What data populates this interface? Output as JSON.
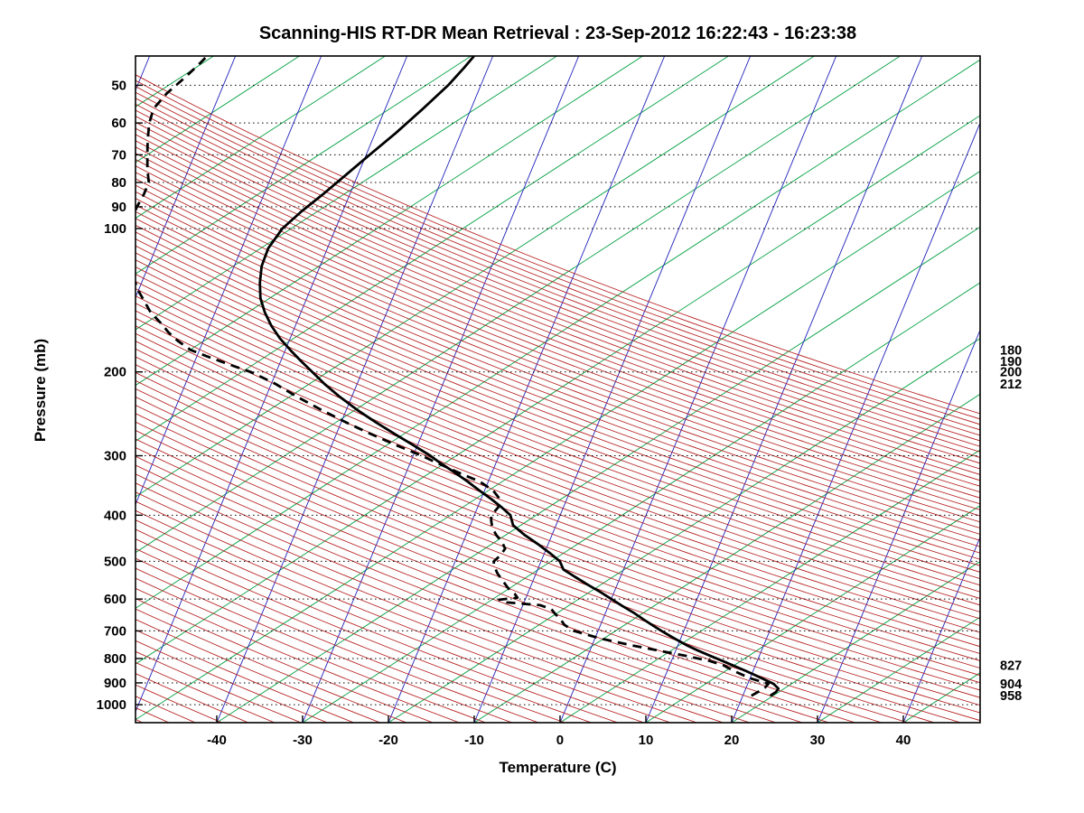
{
  "chart_data": {
    "type": "line",
    "variant": "skew-t-log-p-sounding",
    "title": "Scanning-HIS RT-DR Mean Retrieval : 23-Sep-2012 16:22:43 - 16:23:38",
    "xlabel": "Temperature (C)",
    "ylabel": "Pressure (mb)",
    "x_ticks": [
      -40,
      -30,
      -20,
      -10,
      0,
      10,
      20,
      30,
      40
    ],
    "y_ticks": [
      50,
      60,
      70,
      80,
      90,
      100,
      200,
      300,
      400,
      500,
      600,
      700,
      800,
      900,
      1000
    ],
    "xlim_surface": [
      -49.47,
      48.95
    ],
    "plim": [
      43.4,
      1091
    ],
    "skew_deg": 45,
    "grid": "dotted-horizontal-pressure-lines",
    "legend_position": "none",
    "right_pressure_labels": [
      180,
      190,
      200,
      212,
      827,
      904,
      958
    ],
    "series": [
      {
        "name": "temperature",
        "line": "solid",
        "color": "#000000",
        "points": [
          [
            958,
            23.2
          ],
          [
            940,
            23.7
          ],
          [
            925,
            23.8
          ],
          [
            904,
            23.0
          ],
          [
            885,
            21.7
          ],
          [
            865,
            20.3
          ],
          [
            850,
            19.2
          ],
          [
            827,
            17.4
          ],
          [
            810,
            16.0
          ],
          [
            790,
            14.3
          ],
          [
            770,
            12.6
          ],
          [
            750,
            11.0
          ],
          [
            725,
            9.2
          ],
          [
            700,
            7.4
          ],
          [
            680,
            6.0
          ],
          [
            660,
            4.6
          ],
          [
            640,
            3.2
          ],
          [
            620,
            1.6
          ],
          [
            600,
            0.0
          ],
          [
            580,
            -1.6
          ],
          [
            560,
            -3.4
          ],
          [
            540,
            -5.2
          ],
          [
            520,
            -7.0
          ],
          [
            500,
            -7.8
          ],
          [
            480,
            -9.4
          ],
          [
            460,
            -11.2
          ],
          [
            440,
            -13.2
          ],
          [
            420,
            -15.0
          ],
          [
            400,
            -15.8
          ],
          [
            385,
            -17.2
          ],
          [
            370,
            -18.8
          ],
          [
            355,
            -20.6
          ],
          [
            340,
            -22.4
          ],
          [
            325,
            -24.4
          ],
          [
            310,
            -26.6
          ],
          [
            300,
            -28.0
          ],
          [
            285,
            -30.5
          ],
          [
            270,
            -33.2
          ],
          [
            255,
            -36.0
          ],
          [
            240,
            -38.8
          ],
          [
            225,
            -41.5
          ],
          [
            212,
            -43.8
          ],
          [
            200,
            -45.8
          ],
          [
            190,
            -47.6
          ],
          [
            180,
            -49.4
          ],
          [
            170,
            -51.2
          ],
          [
            160,
            -52.8
          ],
          [
            150,
            -54.2
          ],
          [
            140,
            -55.4
          ],
          [
            130,
            -56.2
          ],
          [
            120,
            -56.8
          ],
          [
            110,
            -56.9
          ],
          [
            100,
            -56.2
          ],
          [
            92,
            -54.8
          ],
          [
            85,
            -53.2
          ],
          [
            78,
            -51.6
          ],
          [
            70,
            -49.6
          ],
          [
            63,
            -47.6
          ],
          [
            56,
            -45.6
          ],
          [
            50,
            -43.8
          ],
          [
            46,
            -42.8
          ],
          [
            43.4,
            -42.2
          ]
        ]
      },
      {
        "name": "dew_point",
        "line": "dashed",
        "color": "#000000",
        "points": [
          [
            958,
            21.0
          ],
          [
            940,
            21.6
          ],
          [
            920,
            22.2
          ],
          [
            904,
            22.4
          ],
          [
            880,
            20.0
          ],
          [
            850,
            17.8
          ],
          [
            827,
            16.3
          ],
          [
            810,
            14.5
          ],
          [
            790,
            11.5
          ],
          [
            770,
            8.0
          ],
          [
            750,
            4.5
          ],
          [
            725,
            0.5
          ],
          [
            700,
            -2.8
          ],
          [
            680,
            -4.2
          ],
          [
            660,
            -5.0
          ],
          [
            645,
            -5.8
          ],
          [
            630,
            -6.5
          ],
          [
            618,
            -8.0
          ],
          [
            610,
            -12.0
          ],
          [
            602,
            -13.0
          ],
          [
            596,
            -11.0
          ],
          [
            585,
            -11.5
          ],
          [
            570,
            -12.5
          ],
          [
            550,
            -13.5
          ],
          [
            530,
            -14.5
          ],
          [
            510,
            -15.3
          ],
          [
            500,
            -15.5
          ],
          [
            485,
            -15.0
          ],
          [
            470,
            -14.8
          ],
          [
            455,
            -15.5
          ],
          [
            440,
            -16.5
          ],
          [
            425,
            -17.3
          ],
          [
            410,
            -17.8
          ],
          [
            400,
            -18.0
          ],
          [
            385,
            -17.6
          ],
          [
            370,
            -17.8
          ],
          [
            355,
            -19.0
          ],
          [
            340,
            -21.0
          ],
          [
            325,
            -24.0
          ],
          [
            310,
            -27.0
          ],
          [
            300,
            -29.0
          ],
          [
            285,
            -32.5
          ],
          [
            270,
            -36.0
          ],
          [
            255,
            -39.5
          ],
          [
            240,
            -43.0
          ],
          [
            225,
            -46.5
          ],
          [
            212,
            -49.5
          ],
          [
            205,
            -51.5
          ],
          [
            200,
            -53.0
          ],
          [
            195,
            -55.0
          ],
          [
            190,
            -57.0
          ],
          [
            185,
            -59.0
          ],
          [
            180,
            -61.0
          ],
          [
            172,
            -63.0
          ],
          [
            165,
            -64.5
          ],
          [
            158,
            -65.8
          ],
          [
            150,
            -67.5
          ],
          [
            142,
            -68.8
          ],
          [
            135,
            -70.0
          ],
          [
            128,
            -71.0
          ],
          [
            120,
            -72.0
          ],
          [
            112,
            -73.0
          ],
          [
            105,
            -73.6
          ],
          [
            100,
            -74.0
          ],
          [
            95,
            -74.2
          ],
          [
            90,
            -74.2
          ],
          [
            85,
            -74.0
          ],
          [
            80,
            -74.0
          ],
          [
            75,
            -74.8
          ],
          [
            70,
            -75.5
          ],
          [
            65,
            -76.2
          ],
          [
            60,
            -76.8
          ],
          [
            56,
            -77.0
          ],
          [
            52,
            -76.2
          ],
          [
            48,
            -74.8
          ],
          [
            45,
            -73.8
          ],
          [
            43.4,
            -73.3
          ]
        ]
      }
    ],
    "background_lines": {
      "isotherms": {
        "color": "#2020bb",
        "t_start": -120,
        "t_end": 40,
        "step": 10
      },
      "dry_adiabats": {
        "color": "#b51d1d",
        "theta_k_start": 219,
        "theta_k_end": 459,
        "theta_k_step": 3
      },
      "moist_adiabats": {
        "color": "#00a040",
        "t_start": -170,
        "t_end": 45,
        "step": 10,
        "slope_dx_per_dy": 1.54
      },
      "pressure_gridlines": {
        "color": "#000000",
        "style": "dotted"
      }
    }
  }
}
